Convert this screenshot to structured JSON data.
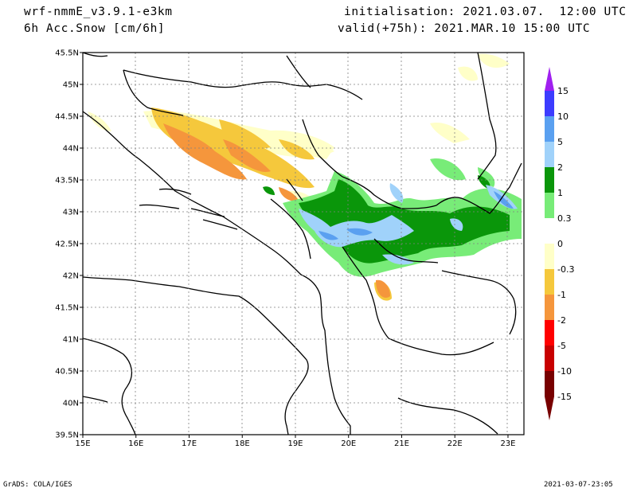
{
  "header": {
    "model": "wrf-nmmE_v3.9.1-e3km",
    "field": "6h Acc.Snow [cm/6h]",
    "init": "initialisation: 2021.03.07.  12:00 UTC",
    "valid": "valid(+75h): 2021.MAR.10 15:00 UTC"
  },
  "footer": {
    "left": "GrADS: COLA/IGES",
    "right": "2021-03-07-23:05"
  },
  "map": {
    "lon_range": [
      15,
      23.3
    ],
    "lat_range": [
      39.5,
      45.5
    ],
    "x_ticks": [
      "15E",
      "16E",
      "17E",
      "18E",
      "19E",
      "20E",
      "21E",
      "22E",
      "23E"
    ],
    "y_ticks": [
      "45.5N",
      "45N",
      "44.5N",
      "44N",
      "43.5N",
      "43N",
      "42.5N",
      "42N",
      "41.5N",
      "41N",
      "40.5N",
      "40N",
      "39.5N"
    ],
    "gridlines": true
  },
  "colorbar": {
    "labels": [
      "15",
      "10",
      "5",
      "2",
      "1",
      "0.3",
      "0",
      "-0.3",
      "-1",
      "-2",
      "-5",
      "-10",
      "-15"
    ],
    "colors": [
      "#a020f0",
      "#3c3cff",
      "#5aa0f0",
      "#a0d2fa",
      "#0a960a",
      "#78ec78",
      "#ffffff",
      "#ffffc8",
      "#f5c83c",
      "#f5963c",
      "#ff0000",
      "#c80000",
      "#780000"
    ]
  }
}
